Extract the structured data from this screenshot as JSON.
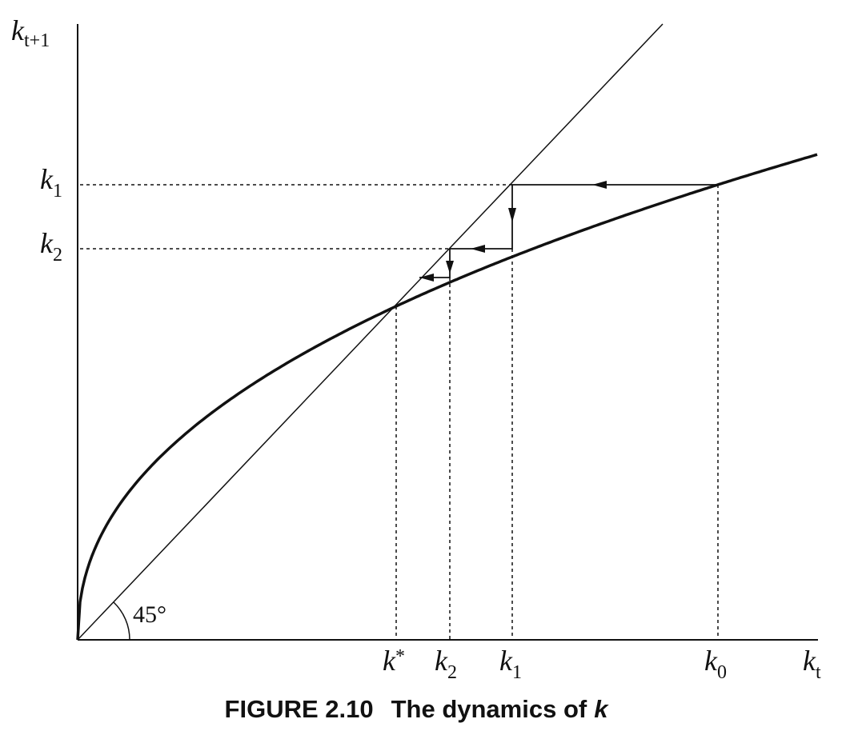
{
  "axes": {
    "y_label": {
      "base": "k",
      "sub": "t+1"
    },
    "x_label": {
      "base": "k",
      "sub": "t"
    }
  },
  "y_labels": [
    {
      "base": "k",
      "sub": "1"
    },
    {
      "base": "k",
      "sub": "2"
    }
  ],
  "x_labels": [
    {
      "base": "k",
      "sup": "*"
    },
    {
      "base": "k",
      "sub": "2"
    },
    {
      "base": "k",
      "sub": "1"
    },
    {
      "base": "k",
      "sub": "0"
    }
  ],
  "angle_label": "45°",
  "caption": {
    "number": "FIGURE 2.10",
    "text": "The dynamics of",
    "symbol": "k"
  }
}
